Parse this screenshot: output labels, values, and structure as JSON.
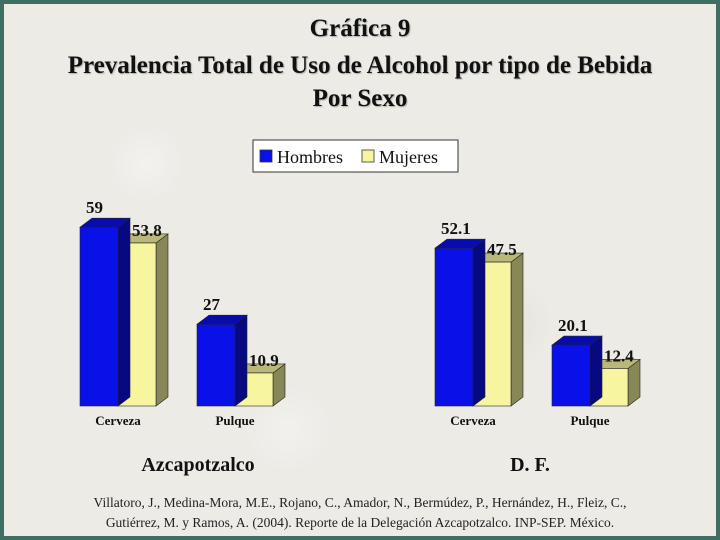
{
  "title_lines": [
    "Gráfica 9",
    "Prevalencia Total de Uso de Alcohol por tipo de Bebida",
    "Por Sexo"
  ],
  "citation_lines": [
    "Villatoro, J., Medina-Mora, M.E., Rojano, C., Amador, N., Bermúdez, P., Hernández, H., Fleiz, C.,",
    "Gutiérrez, M. y Ramos, A. (2004). Reporte de la Delegación Azcapotzalco. INP-SEP. México."
  ],
  "colors": {
    "hombres": "#0a10e8",
    "mujeres": "#f8f5a0"
  },
  "chart_data": {
    "type": "bar",
    "legend": {
      "position": "top-center",
      "entries": [
        "Hombres",
        "Mujeres"
      ]
    },
    "groups": [
      {
        "label": "Azcapotzalco",
        "categories": [
          "Cerveza",
          "Pulque"
        ],
        "series": [
          {
            "name": "Hombres",
            "values": [
              59,
              27
            ]
          },
          {
            "name": "Mujeres",
            "values": [
              53.8,
              10.9
            ]
          }
        ]
      },
      {
        "label": "D. F.",
        "categories": [
          "Cerveza",
          "Pulque"
        ],
        "series": [
          {
            "name": "Hombres",
            "values": [
              52.1,
              20.1
            ]
          },
          {
            "name": "Mujeres",
            "values": [
              47.5,
              12.4
            ]
          }
        ]
      }
    ],
    "grid": false,
    "ylim": [
      0,
      62
    ]
  }
}
